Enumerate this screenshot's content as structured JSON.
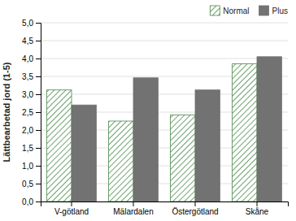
{
  "chart_data": {
    "type": "bar",
    "ylabel": "Lättbearbetad jord (1-5)",
    "categories": [
      "V-götland",
      "Mälardalen",
      "Östergötland",
      "Skåne"
    ],
    "series": [
      {
        "name": "Normal",
        "color": "#4a8a4a",
        "values": [
          3.12,
          2.25,
          2.42,
          3.85
        ]
      },
      {
        "name": "Plus",
        "color": "#727272",
        "values": [
          2.7,
          3.46,
          3.12,
          4.05
        ]
      }
    ],
    "ylim": [
      0,
      5.0
    ],
    "yticks": [
      {
        "value": 0.0,
        "label": "0,0"
      },
      {
        "value": 0.5,
        "label": "0,5"
      },
      {
        "value": 1.0,
        "label": "1,0"
      },
      {
        "value": 1.5,
        "label": "1,5"
      },
      {
        "value": 2.0,
        "label": "2,0"
      },
      {
        "value": 2.5,
        "label": "2,5"
      },
      {
        "value": 3.0,
        "label": "3,0"
      },
      {
        "value": 3.5,
        "label": "3,5"
      },
      {
        "value": 4.0,
        "label": "4,0"
      },
      {
        "value": 4.5,
        "label": "4,5"
      },
      {
        "value": 5.0,
        "label": "5,0"
      }
    ],
    "grid": true,
    "legend": "upper-right"
  }
}
